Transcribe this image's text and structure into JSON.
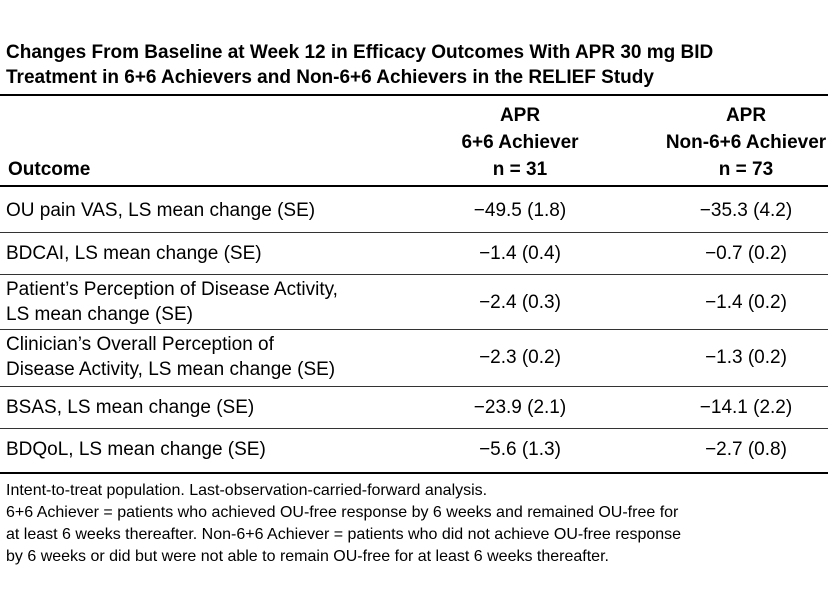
{
  "title": {
    "line1": "Changes From Baseline at Week 12 in Efficacy Outcomes With APR 30 mg BID",
    "line2": "Treatment in 6+6 Achievers and Non-6+6 Achievers in the RELIEF Study"
  },
  "table": {
    "header": {
      "outcome_label": "Outcome",
      "col1": {
        "line1": "APR",
        "line2": "6+6 Achiever",
        "line3": "n = 31"
      },
      "col2": {
        "line1": "APR",
        "line2": "Non-6+6 Achiever",
        "line3": "n = 73"
      }
    },
    "rows": [
      {
        "outcome": [
          "OU pain VAS, LS mean change (SE)"
        ],
        "v1": "−49.5 (1.8)",
        "v2": "−35.3 (4.2)"
      },
      {
        "outcome": [
          "BDCAI, LS mean change (SE)"
        ],
        "v1": "−1.4 (0.4)",
        "v2": "−0.7 (0.2)"
      },
      {
        "outcome": [
          "Patient’s Perception of Disease Activity,",
          "LS mean change (SE)"
        ],
        "v1": "−2.4 (0.3)",
        "v2": "−1.4 (0.2)"
      },
      {
        "outcome": [
          "Clinician’s Overall Perception of",
          "Disease Activity, LS mean change (SE)"
        ],
        "v1": "−2.3 (0.2)",
        "v2": "−1.3 (0.2)"
      },
      {
        "outcome": [
          "BSAS, LS mean change (SE)"
        ],
        "v1": "−23.9 (2.1)",
        "v2": "−14.1 (2.2)"
      },
      {
        "outcome": [
          "BDQoL, LS mean change (SE)"
        ],
        "v1": "−5.6 (1.3)",
        "v2": "−2.7 (0.8)"
      }
    ]
  },
  "footnote": {
    "lines": [
      "Intent-to-treat population. Last-observation-carried-forward analysis.",
      "6+6 Achiever = patients who achieved OU-free response by 6 weeks and remained OU-free for",
      "at least 6 weeks thereafter. Non-6+6 Achiever = patients who did not achieve OU-free response",
      "by 6 weeks or did but were not able to remain OU-free for at least 6 weeks thereafter."
    ]
  }
}
